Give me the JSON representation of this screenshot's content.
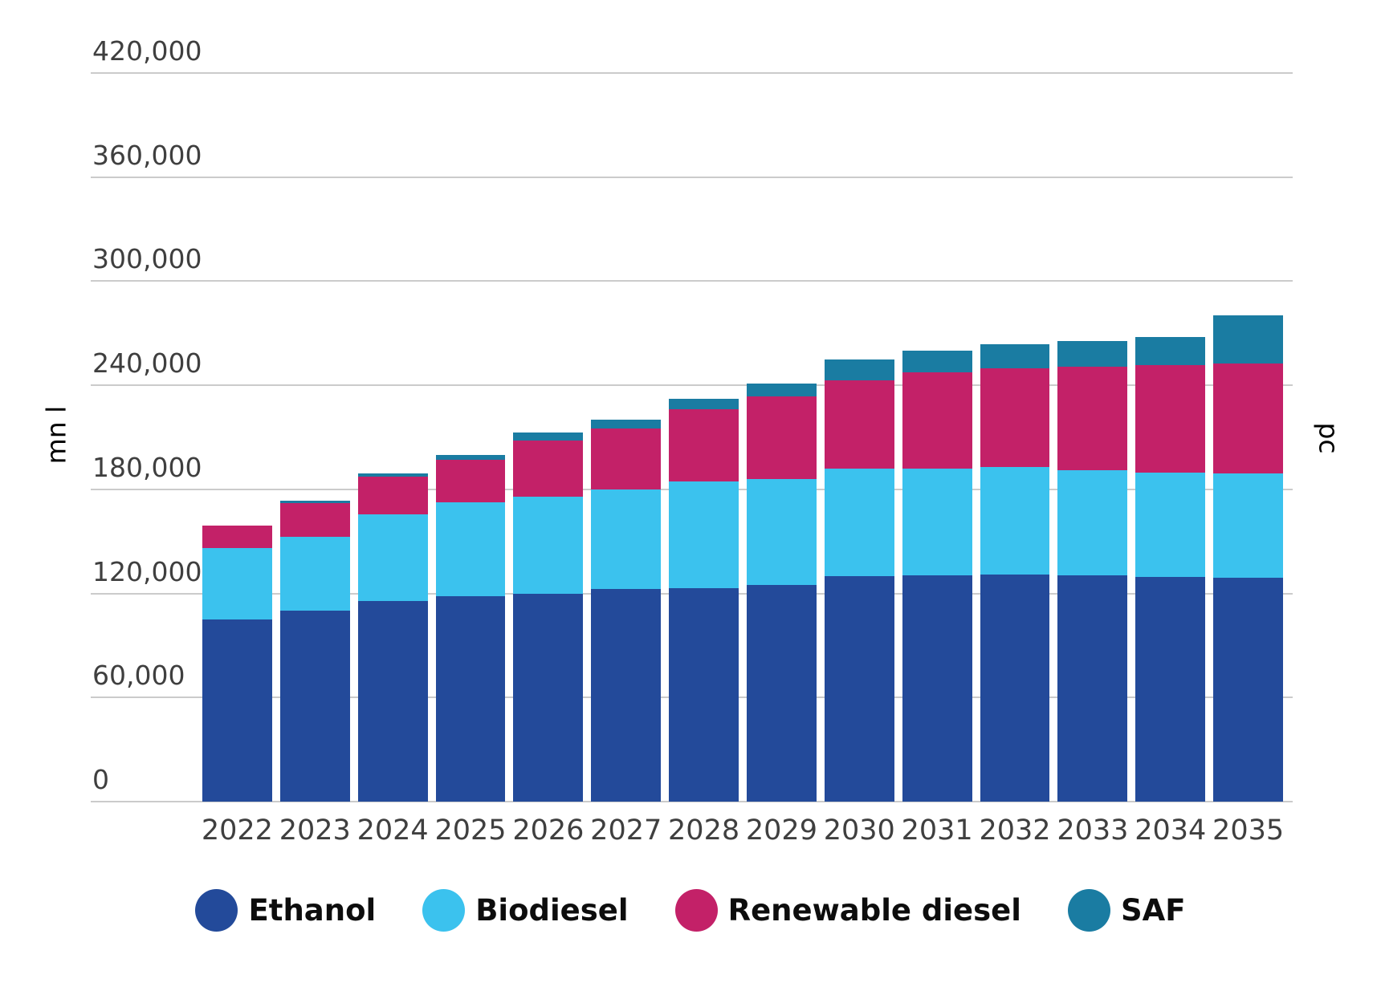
{
  "chart_data": {
    "type": "bar",
    "stacked": true,
    "title": "",
    "categories": [
      "2022",
      "2023",
      "2024",
      "2025",
      "2026",
      "2027",
      "2028",
      "2029",
      "2030",
      "2031",
      "2032",
      "2033",
      "2034",
      "2035"
    ],
    "series": [
      {
        "name": "Ethanol",
        "color": "#234A9A",
        "values": [
          105000,
          110000,
          115500,
          118500,
          120000,
          122500,
          123000,
          125000,
          130000,
          130500,
          131000,
          130500,
          129500,
          129000
        ]
      },
      {
        "name": "Biodiesel",
        "color": "#3BC2EE",
        "values": [
          41000,
          42500,
          50000,
          54000,
          56000,
          57500,
          61500,
          61000,
          62000,
          61500,
          62000,
          60500,
          60000,
          60000
        ]
      },
      {
        "name": "Renewable diesel",
        "color": "#C32168",
        "values": [
          13000,
          19500,
          22000,
          24500,
          32000,
          35000,
          41500,
          47500,
          51000,
          55500,
          57000,
          59500,
          62000,
          63500
        ]
      },
      {
        "name": "SAF",
        "color": "#1A7CA2",
        "values": [
          0,
          1500,
          1500,
          3000,
          5000,
          5000,
          6000,
          7500,
          12000,
          12500,
          13500,
          15000,
          16500,
          28000
        ]
      }
    ],
    "ylabel_left": "mn l",
    "ylabel_right": "pc",
    "xlabel": "",
    "ylim": [
      0,
      420000
    ],
    "ytick_step": 60000,
    "yticks": [
      "0",
      "60,000",
      "120,000",
      "180,000",
      "240,000",
      "300,000",
      "360,000",
      "420,000"
    ],
    "grid": true,
    "legend_position": "bottom"
  },
  "style": {
    "grid_color": "#cbcbcb",
    "tick_text_color": "#3f3f3f",
    "axis_title_color": "#555555",
    "legend_text_color": "#0d0d0d",
    "background": "#ffffff"
  }
}
